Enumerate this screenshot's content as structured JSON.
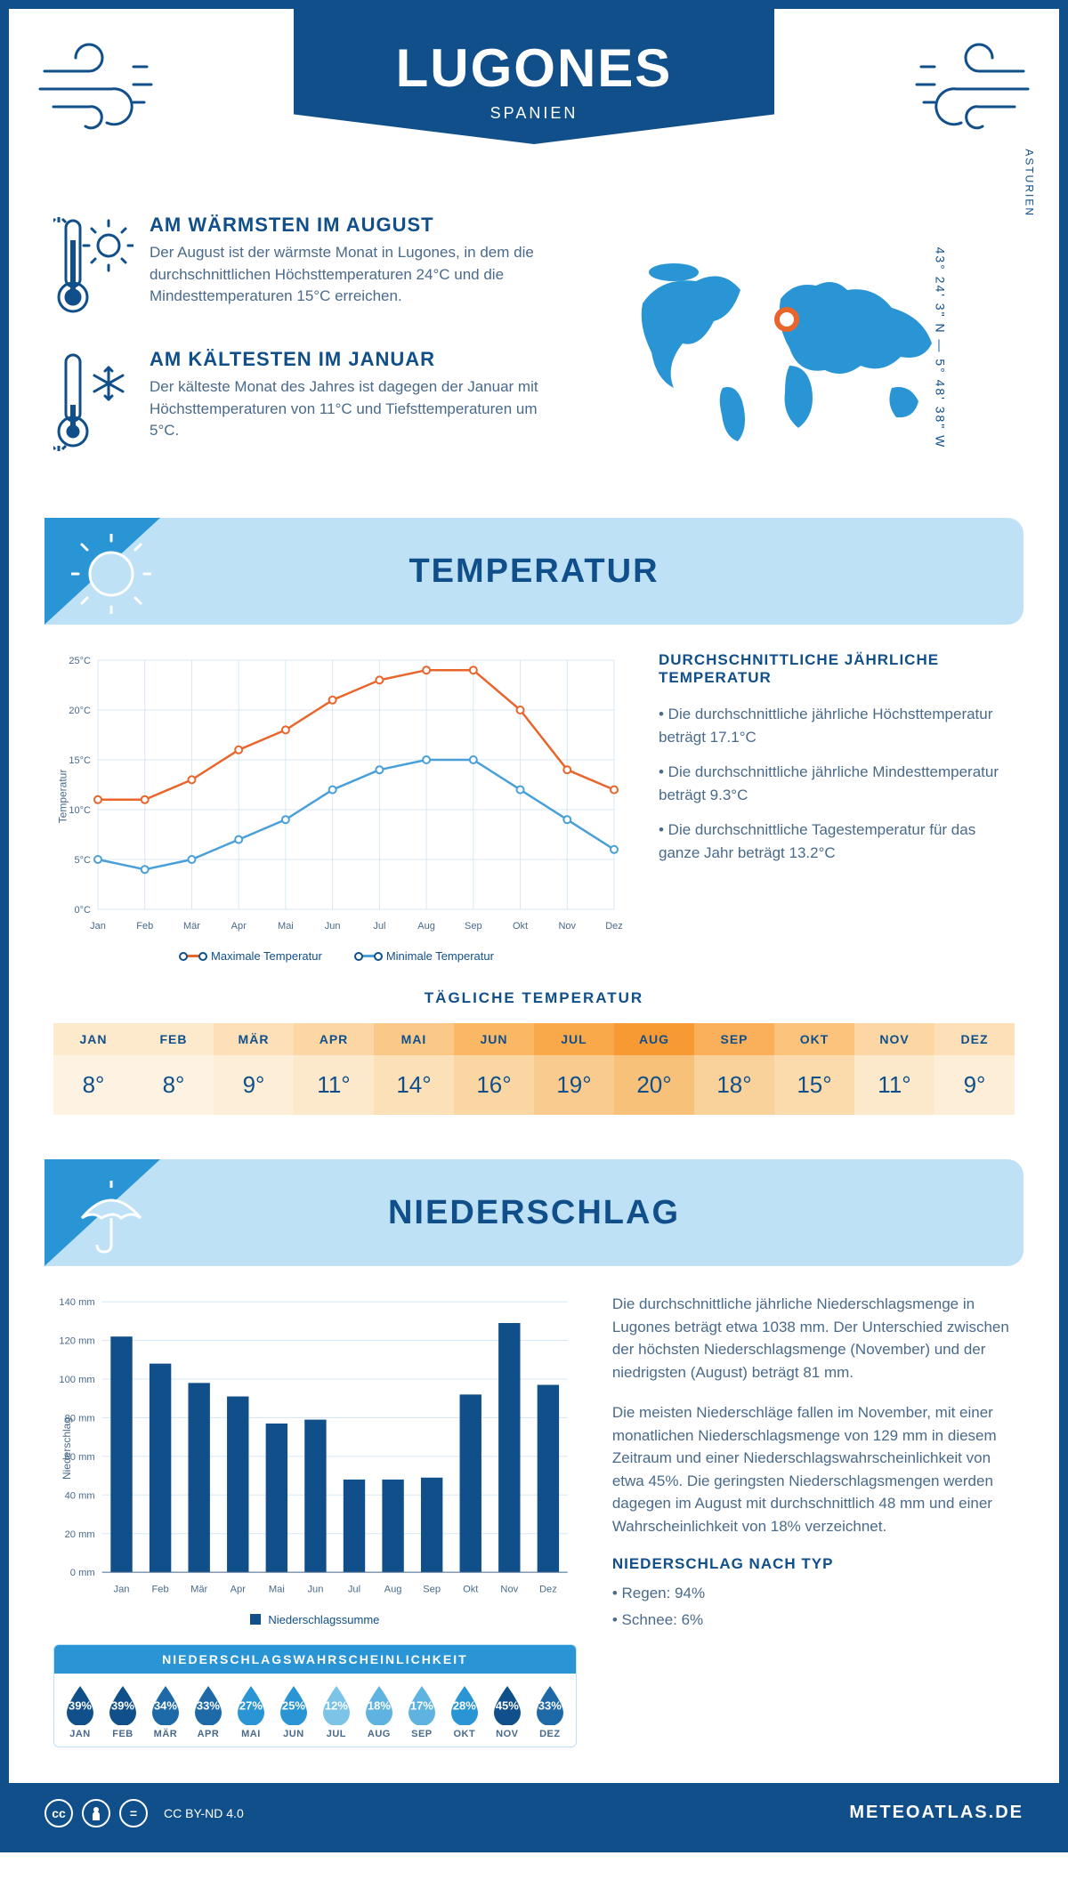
{
  "header": {
    "title": "LUGONES",
    "subtitle": "SPANIEN"
  },
  "intro": {
    "warm": {
      "title": "AM WÄRMSTEN IM AUGUST",
      "text": "Der August ist der wärmste Monat in Lugones, in dem die durchschnittlichen Höchsttemperaturen 24°C und die Mindesttemperaturen 15°C erreichen."
    },
    "cold": {
      "title": "AM KÄLTESTEN IM JANUAR",
      "text": "Der kälteste Monat des Jahres ist dagegen der Januar mit Höchsttemperaturen von 11°C und Tiefsttemperaturen um 5°C."
    },
    "coords": "43° 24' 3\" N — 5° 48' 38\" W",
    "region": "ASTURIEN"
  },
  "sections": {
    "temperature": "TEMPERATUR",
    "precipitation": "NIEDERSCHLAG"
  },
  "temperature": {
    "chart": {
      "months": [
        "Jan",
        "Feb",
        "Mär",
        "Apr",
        "Mai",
        "Jun",
        "Jul",
        "Aug",
        "Sep",
        "Okt",
        "Nov",
        "Dez"
      ],
      "max_series": [
        11,
        11,
        13,
        16,
        18,
        21,
        23,
        24,
        24,
        20,
        14,
        12
      ],
      "min_series": [
        5,
        4,
        5,
        7,
        9,
        12,
        14,
        15,
        15,
        12,
        9,
        6
      ],
      "max_color": "#e8662c",
      "min_color": "#49a0d8",
      "ylim": [
        0,
        25
      ],
      "ytick_step": 5,
      "y_unit": "°C",
      "y_label": "Temperatur",
      "grid_color": "#d8e8f4",
      "legend_max": "Maximale Temperatur",
      "legend_min": "Minimale Temperatur"
    },
    "summary": {
      "heading": "DURCHSCHNITTLICHE JÄHRLICHE TEMPERATUR",
      "bullets": [
        "Die durchschnittliche jährliche Höchsttemperatur beträgt 17.1°C",
        "Die durchschnittliche jährliche Mindesttemperatur beträgt 9.3°C",
        "Die durchschnittliche Tagestemperatur für das ganze Jahr beträgt 13.2°C"
      ]
    },
    "daily": {
      "heading": "TÄGLICHE TEMPERATUR",
      "months": [
        "JAN",
        "FEB",
        "MÄR",
        "APR",
        "MAI",
        "JUN",
        "JUL",
        "AUG",
        "SEP",
        "OKT",
        "NOV",
        "DEZ"
      ],
      "values": [
        "8°",
        "8°",
        "9°",
        "11°",
        "14°",
        "16°",
        "19°",
        "20°",
        "18°",
        "15°",
        "11°",
        "9°"
      ],
      "header_bg": [
        "#fde9cc",
        "#fde9cc",
        "#fde0b8",
        "#fcd7a4",
        "#fbc987",
        "#fab764",
        "#f9a84a",
        "#f89a34",
        "#fab05a",
        "#fbc37c",
        "#fcd7a4",
        "#fde0b8"
      ],
      "value_bg": [
        "#fef3e3",
        "#fef3e3",
        "#fdeed7",
        "#fce8ca",
        "#fbe0b8",
        "#fad6a3",
        "#f9cb8e",
        "#f8c17a",
        "#f9d19a",
        "#fbdbac",
        "#fce8ca",
        "#fdeed7"
      ]
    }
  },
  "precipitation": {
    "chart": {
      "months": [
        "Jan",
        "Feb",
        "Mär",
        "Apr",
        "Mai",
        "Jun",
        "Jul",
        "Aug",
        "Sep",
        "Okt",
        "Nov",
        "Dez"
      ],
      "values": [
        122,
        108,
        98,
        91,
        77,
        79,
        48,
        48,
        49,
        92,
        129,
        97
      ],
      "bar_color": "#104f8a",
      "ylim": [
        0,
        140
      ],
      "ytick_step": 20,
      "y_unit": " mm",
      "y_label": "Niederschlag",
      "grid_color": "#d8e8f4",
      "legend": "Niederschlagssumme"
    },
    "text": {
      "p1": "Die durchschnittliche jährliche Niederschlagsmenge in Lugones beträgt etwa 1038 mm. Der Unterschied zwischen der höchsten Niederschlagsmenge (November) und der niedrigsten (August) beträgt 81 mm.",
      "p2": "Die meisten Niederschläge fallen im November, mit einer monatlichen Niederschlagsmenge von 129 mm in diesem Zeitraum und einer Niederschlagswahrscheinlichkeit von etwa 45%. Die geringsten Niederschlagsmengen werden dagegen im August mit durchschnittlich 48 mm und einer Wahrscheinlichkeit von 18% verzeichnet.",
      "type_heading": "NIEDERSCHLAG NACH TYP",
      "types": [
        "Regen: 94%",
        "Schnee: 6%"
      ]
    },
    "probability": {
      "heading": "NIEDERSCHLAGSWAHRSCHEINLICHKEIT",
      "months": [
        "JAN",
        "FEB",
        "MÄR",
        "APR",
        "MAI",
        "JUN",
        "JUL",
        "AUG",
        "SEP",
        "OKT",
        "NOV",
        "DEZ"
      ],
      "values": [
        "39%",
        "39%",
        "34%",
        "33%",
        "27%",
        "25%",
        "12%",
        "18%",
        "17%",
        "28%",
        "45%",
        "33%"
      ],
      "colors": [
        "#104f8a",
        "#104f8a",
        "#1e6aa8",
        "#1e6aa8",
        "#2a95d5",
        "#2a95d5",
        "#7cc3e8",
        "#5fb3e0",
        "#5fb3e0",
        "#2a95d5",
        "#104f8a",
        "#1e6aa8"
      ]
    }
  },
  "footer": {
    "license": "CC BY-ND 4.0",
    "brand": "METEOATLAS.DE"
  },
  "colors": {
    "primary": "#104f8a",
    "accent": "#2a95d5",
    "light": "#bfe1f6"
  }
}
